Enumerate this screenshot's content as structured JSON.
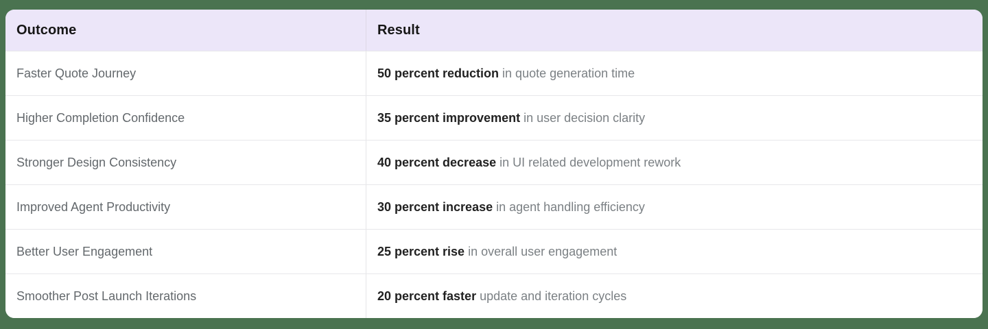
{
  "page": {
    "background_color": "#4a7350"
  },
  "table": {
    "header": {
      "background_color": "#ece6f9",
      "columns": [
        {
          "label": "Outcome"
        },
        {
          "label": "Result"
        }
      ]
    },
    "rows": [
      {
        "outcome": "Faster Quote Journey",
        "result_highlight": "50 percent reduction",
        "result_detail": "in quote generation time"
      },
      {
        "outcome": "Higher Completion Confidence",
        "result_highlight": "35 percent improvement",
        "result_detail": "in user decision clarity"
      },
      {
        "outcome": "Stronger Design Consistency",
        "result_highlight": "40 percent decrease",
        "result_detail": "in UI related development rework"
      },
      {
        "outcome": "Improved Agent Productivity",
        "result_highlight": "30 percent increase",
        "result_detail": "in agent handling efficiency"
      },
      {
        "outcome": "Better User Engagement",
        "result_highlight": "25 percent rise",
        "result_detail": "in overall user engagement"
      },
      {
        "outcome": "Smoother Post Launch Iterations",
        "result_highlight": "20 percent faster",
        "result_detail": "update and iteration cycles"
      }
    ]
  }
}
